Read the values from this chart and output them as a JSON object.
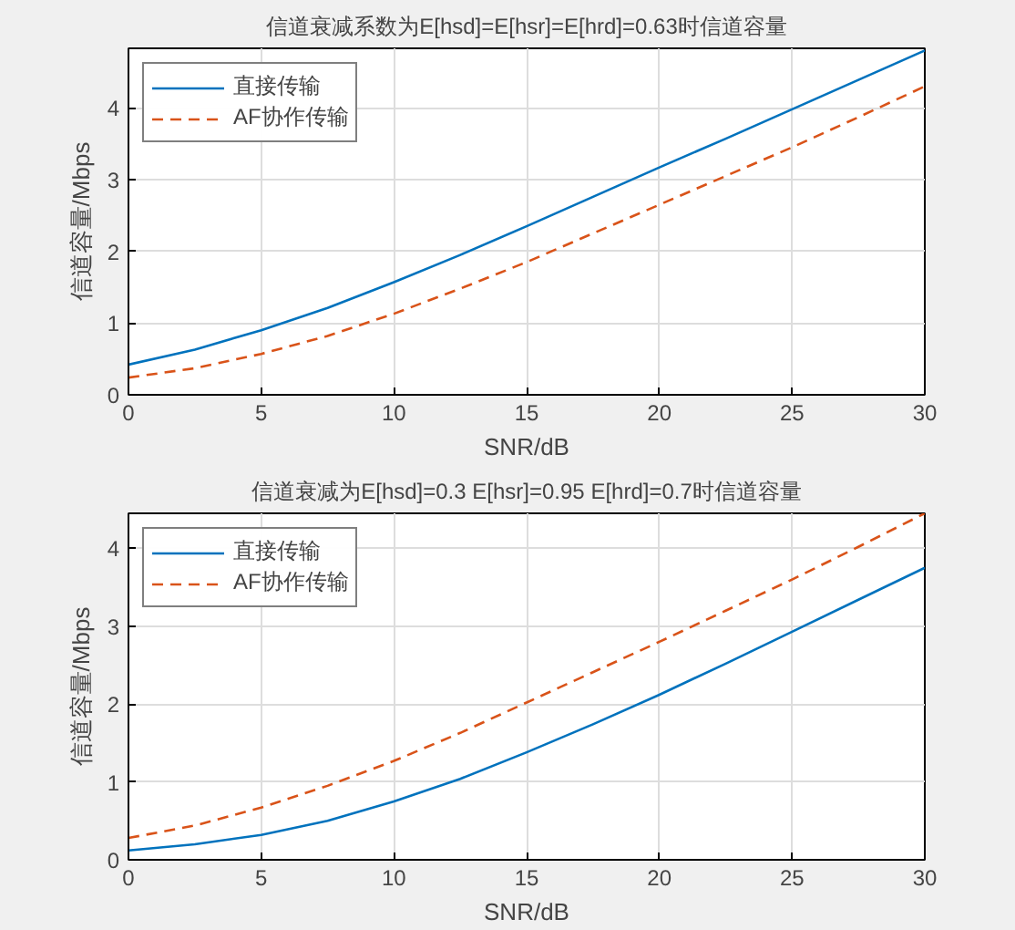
{
  "chart_data": [
    {
      "type": "line",
      "title": "信道衰减系数为E[hsd]=E[hsr]=E[hrd]=0.63时信道容量",
      "xlabel": "SNR/dB",
      "ylabel": "信道容量/Mbps",
      "x": [
        0,
        2.5,
        5,
        7.5,
        10,
        12.5,
        15,
        17.5,
        20,
        22.5,
        25,
        27.5,
        30
      ],
      "series": [
        {
          "name": "直接传输",
          "color": "#0072bd",
          "line_style": "solid",
          "values": [
            0.42,
            0.63,
            0.9,
            1.21,
            1.57,
            1.95,
            2.35,
            2.76,
            3.17,
            3.57,
            3.98,
            4.39,
            4.8
          ]
        },
        {
          "name": "AF协作传输",
          "color": "#d95319",
          "line_style": "dashed",
          "values": [
            0.24,
            0.37,
            0.57,
            0.82,
            1.13,
            1.48,
            1.85,
            2.25,
            2.65,
            3.05,
            3.45,
            3.87,
            4.3
          ]
        }
      ],
      "xlim": [
        0,
        30
      ],
      "ylim": [
        0,
        4.83
      ],
      "xticks": [
        0,
        5,
        10,
        15,
        20,
        25,
        30
      ],
      "yticks": [
        0,
        1,
        2,
        3,
        4
      ],
      "grid": true,
      "legend": "top left"
    },
    {
      "type": "line",
      "title": "信道衰减为E[hsd]=0.3 E[hsr]=0.95 E[hrd]=0.7时信道容量",
      "xlabel": "SNR/dB",
      "ylabel": "信道容量/Mbps",
      "x": [
        0,
        2.5,
        5,
        7.5,
        10,
        12.5,
        15,
        17.5,
        20,
        22.5,
        25,
        27.5,
        30
      ],
      "series": [
        {
          "name": "直接传输",
          "color": "#0072bd",
          "line_style": "solid",
          "values": [
            0.12,
            0.2,
            0.32,
            0.5,
            0.75,
            1.04,
            1.38,
            1.74,
            2.12,
            2.52,
            2.93,
            3.34,
            3.75
          ]
        },
        {
          "name": "AF协作传输",
          "color": "#d95319",
          "line_style": "dashed",
          "values": [
            0.28,
            0.44,
            0.67,
            0.95,
            1.27,
            1.63,
            2.02,
            2.41,
            2.8,
            3.2,
            3.6,
            4.02,
            4.45
          ]
        }
      ],
      "xlim": [
        0,
        30
      ],
      "ylim": [
        0,
        4.45
      ],
      "xticks": [
        0,
        5,
        10,
        15,
        20,
        25,
        30
      ],
      "yticks": [
        0,
        1,
        2,
        3,
        4
      ],
      "grid": true,
      "legend": "top left"
    }
  ]
}
